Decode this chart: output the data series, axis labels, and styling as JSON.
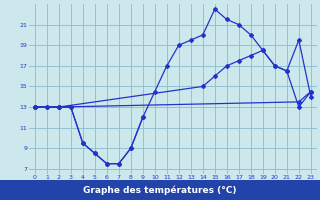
{
  "bg_color": "#cce8ec",
  "grid_color": "#88bbcc",
  "line_color": "#2233cc",
  "xlabel": "Graphe des températures (°C)",
  "xlabel_bg": "#2244aa",
  "ylim": [
    6.5,
    23.0
  ],
  "xlim": [
    -0.5,
    23.5
  ],
  "yticks": [
    7,
    9,
    11,
    13,
    15,
    17,
    19,
    21
  ],
  "xticks": [
    0,
    1,
    2,
    3,
    4,
    5,
    6,
    7,
    8,
    9,
    10,
    11,
    12,
    13,
    14,
    15,
    16,
    17,
    18,
    19,
    20,
    21,
    22,
    23
  ],
  "series1_x": [
    0,
    1,
    2,
    3,
    4,
    5,
    6,
    7,
    8,
    9
  ],
  "series1_y": [
    13,
    13,
    13,
    13,
    9.5,
    8.5,
    7.5,
    7.5,
    9,
    12
  ],
  "series2_x": [
    0,
    1,
    2,
    3,
    4,
    5,
    6,
    7,
    8,
    9,
    10,
    11,
    12,
    13,
    14,
    15,
    16,
    17,
    18,
    19,
    20,
    21,
    22,
    23
  ],
  "series2_y": [
    13,
    13,
    13,
    13,
    9.5,
    8.5,
    7.5,
    7.5,
    9,
    12,
    14.5,
    17,
    19,
    19.5,
    20,
    22.5,
    21.5,
    21,
    20,
    18.5,
    17,
    16.5,
    13,
    14.5
  ],
  "series3_x": [
    0,
    2,
    22,
    23
  ],
  "series3_y": [
    13,
    13,
    13.5,
    14.5
  ],
  "series4_x": [
    0,
    2,
    14,
    15,
    16,
    17,
    18,
    19,
    20,
    21,
    22,
    23
  ],
  "series4_y": [
    13,
    13,
    15,
    16,
    17,
    17.5,
    18,
    18.5,
    17,
    16.5,
    19.5,
    14
  ]
}
